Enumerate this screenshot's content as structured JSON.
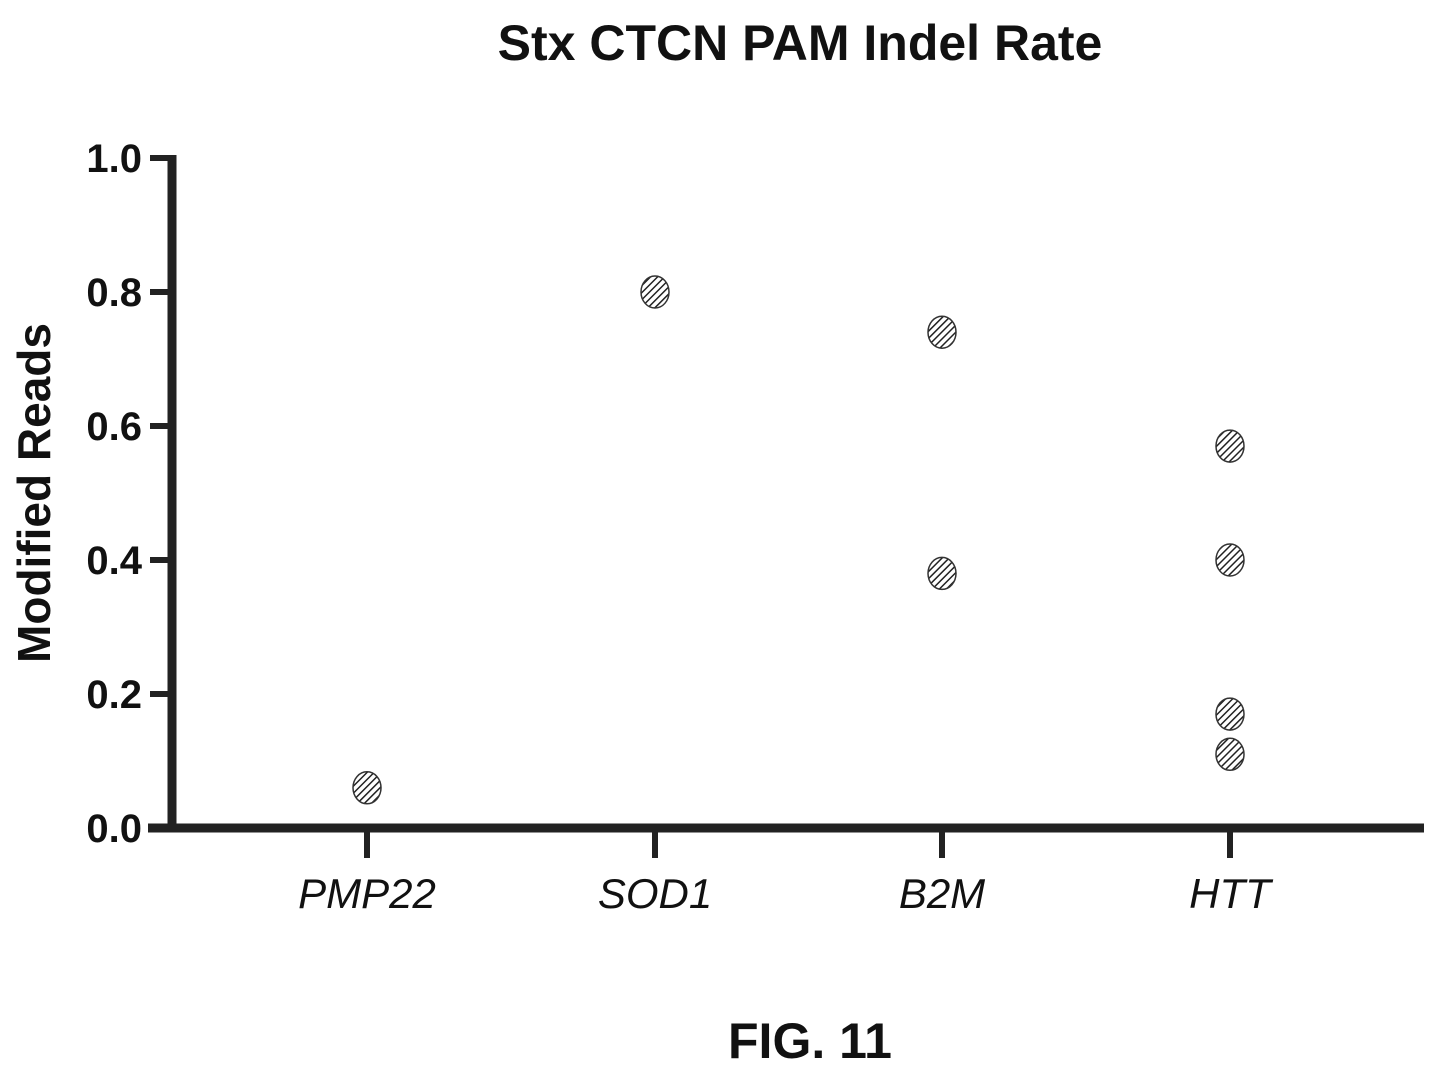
{
  "chart_data": {
    "type": "scatter",
    "title": "Stx CTCN PAM Indel Rate",
    "xlabel": "",
    "ylabel": "Modified Reads",
    "ylim": [
      0,
      1.0
    ],
    "yticks": [
      "0.0",
      "0.2",
      "0.4",
      "0.6",
      "0.8",
      "1.0"
    ],
    "categories": [
      "PMP22",
      "SOD1",
      "B2M",
      "HTT"
    ],
    "series": [
      {
        "points": [
          {
            "category": "PMP22",
            "y": 0.06
          },
          {
            "category": "SOD1",
            "y": 0.8
          },
          {
            "category": "B2M",
            "y": 0.74
          },
          {
            "category": "B2M",
            "y": 0.38
          },
          {
            "category": "HTT",
            "y": 0.57
          },
          {
            "category": "HTT",
            "y": 0.4
          },
          {
            "category": "HTT",
            "y": 0.17
          },
          {
            "category": "HTT",
            "y": 0.11
          }
        ]
      }
    ],
    "marker_color": "#333333",
    "grid": false,
    "legend": "none"
  },
  "caption": "FIG. 11"
}
